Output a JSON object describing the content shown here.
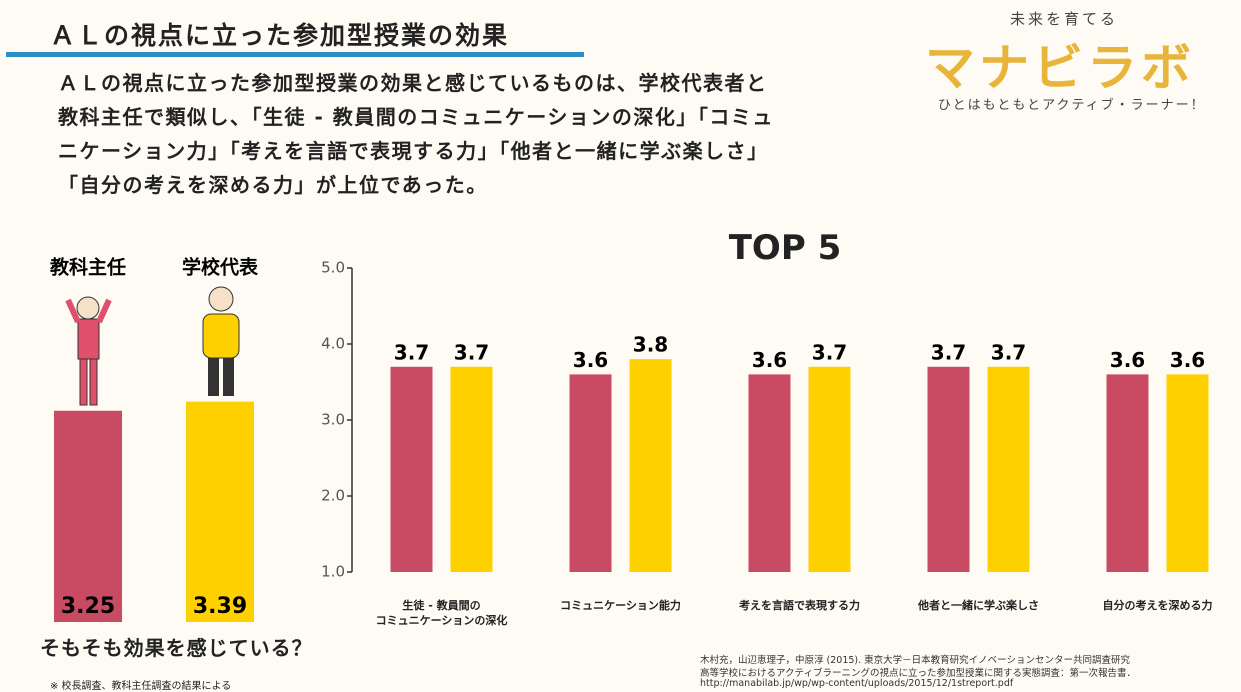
{
  "header": {
    "title": "ＡＬの視点に立った参加型授業の効果",
    "summary": "ＡＬの視点に立った参加型授業の効果と感じているものは、学校代表者と教科主任で類似し、「生徒 - 教員間のコミュニケーションの深化」「コミュニケーション力」「考えを言語で表現する力」「他者と一緒に学ぶ楽しさ」「自分の考えを深める力」が上位であった。"
  },
  "logo": {
    "tagline": "未来を育てる",
    "name": "マナビラボ",
    "motto": "ひとはもともとアクティブ・ラーナー！"
  },
  "chart_data": [
    {
      "type": "bar",
      "title": "そもそも効果を感じている？",
      "note": "※ 校長調査、教科主任調査の結果による",
      "categories": [
        "教科主任",
        "学校代表"
      ],
      "values": [
        3.25,
        3.39
      ],
      "colors": [
        "#c94a63",
        "#ffd000"
      ]
    },
    {
      "type": "bar",
      "title": "TOP 5",
      "categories": [
        "生徒 - 教員間の\nコミュニケーションの深化",
        "コミュニケーション能力",
        "考えを言語で表現する力",
        "他者と一緒に学ぶ楽しさ",
        "自分の考えを深める力"
      ],
      "series": [
        {
          "color": "#c94a63",
          "values": [
            3.7,
            3.6,
            3.6,
            3.7,
            3.6
          ]
        },
        {
          "color": "#ffd000",
          "values": [
            3.7,
            3.8,
            3.7,
            3.7,
            3.6
          ]
        }
      ],
      "ylim": [
        1,
        5
      ],
      "yticks": [
        {
          "value": 1,
          "label": "1.0"
        },
        {
          "value": 2,
          "label": "2.0"
        },
        {
          "value": 3,
          "label": "3.0"
        },
        {
          "value": 4,
          "label": "4.0"
        },
        {
          "value": 5,
          "label": "5.0"
        }
      ]
    }
  ],
  "source": [
    "木村充，山辺恵理子，中原淳 (2015). 東京大学－日本教育研究イノベーションセンター共同調査研究",
    "高等学校におけるアクティブラーニングの視点に立った参加型授業に関する実態調査：第一次報告書．",
    "http://manabilab.jp/wp/wp-content/uploads/2015/12/1streport.pdf"
  ]
}
